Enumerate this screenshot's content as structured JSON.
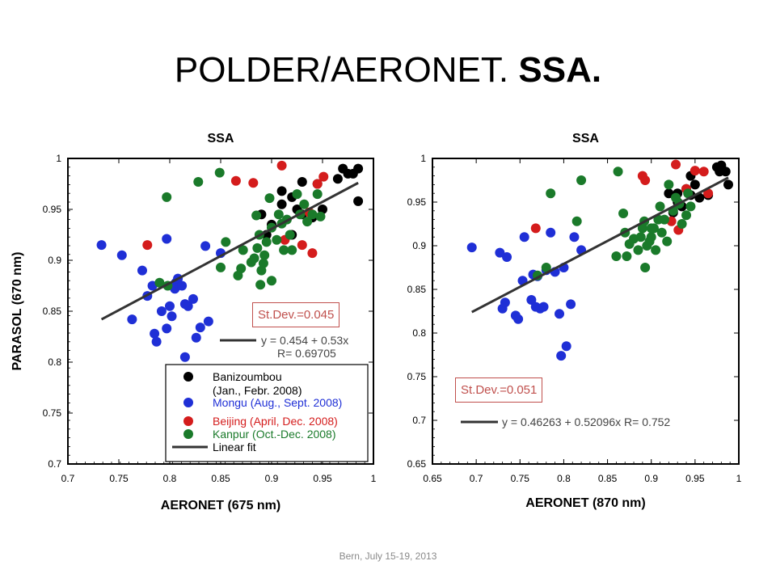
{
  "slide": {
    "title_plain": "POLDER/AERONET.",
    "title_bold": "SSA.",
    "footer": "Bern, July 15-19, 2013"
  },
  "colors": {
    "banizoumbou": "#000000",
    "mongu": "#1f2fd6",
    "beijing": "#d41c1c",
    "kanpur": "#1a7a2a",
    "fit": "#333333",
    "stdev_box": "#c0504d"
  },
  "chart_data": [
    {
      "type": "scatter",
      "title": "SSA",
      "xlabel": "AERONET (675 nm)",
      "ylabel": "PARASOL (670 nm)",
      "xlim": [
        0.7,
        1.0
      ],
      "ylim": [
        0.7,
        1.0
      ],
      "xticks": [
        0.7,
        0.75,
        0.8,
        0.85,
        0.9,
        0.95,
        1
      ],
      "xtick_labels": [
        "0.7",
        "0.75",
        "0.8",
        "0.85",
        "0.9",
        "0.95",
        "1"
      ],
      "yticks": [
        0.7,
        0.75,
        0.8,
        0.85,
        0.9,
        0.95,
        1
      ],
      "ytick_labels": [
        "0.7",
        "0.75",
        "0.8",
        "0.85",
        "0.9",
        "0.95",
        "1"
      ],
      "fit": {
        "x": [
          0.733,
          0.985
        ],
        "y": [
          0.842,
          0.976
        ],
        "label_line1": "y = 0.454 + 0.53x",
        "label_line2": "R= 0.69705"
      },
      "stdev": "St.Dev.=0.045",
      "legend": {
        "position": "bottom-right",
        "entries": [
          {
            "name": "Banizoumbou",
            "sub": "(Jan., Febr. 2008)",
            "color_key": "banizoumbou"
          },
          {
            "name": "Mongu (Aug., Sept. 2008)",
            "color_key": "mongu"
          },
          {
            "name": "Beijing (April, Dec. 2008)",
            "color_key": "beijing"
          },
          {
            "name": "Kanpur (Oct.-Dec. 2008)",
            "color_key": "kanpur"
          },
          {
            "name": "Linear fit",
            "line": true
          }
        ]
      },
      "series": [
        {
          "name": "Banizoumbou",
          "color_key": "banizoumbou",
          "points": [
            [
              0.965,
              0.98
            ],
            [
              0.97,
              0.99
            ],
            [
              0.975,
              0.985
            ],
            [
              0.98,
              0.985
            ],
            [
              0.985,
              0.99
            ],
            [
              0.985,
              0.958
            ],
            [
              0.93,
              0.977
            ],
            [
              0.945,
              0.975
            ],
            [
              0.91,
              0.968
            ],
            [
              0.92,
              0.962
            ],
            [
              0.925,
              0.95
            ],
            [
              0.93,
              0.945
            ],
            [
              0.91,
              0.955
            ],
            [
              0.89,
              0.945
            ],
            [
              0.9,
              0.935
            ],
            [
              0.895,
              0.925
            ],
            [
              0.92,
              0.925
            ],
            [
              0.95,
              0.95
            ],
            [
              0.94,
              0.942
            ]
          ]
        },
        {
          "name": "Mongu",
          "color_key": "mongu",
          "points": [
            [
              0.733,
              0.915
            ],
            [
              0.753,
              0.905
            ],
            [
              0.763,
              0.842
            ],
            [
              0.773,
              0.89
            ],
            [
              0.778,
              0.865
            ],
            [
              0.783,
              0.875
            ],
            [
              0.785,
              0.828
            ],
            [
              0.787,
              0.82
            ],
            [
              0.792,
              0.85
            ],
            [
              0.797,
              0.833
            ],
            [
              0.797,
              0.921
            ],
            [
              0.8,
              0.855
            ],
            [
              0.802,
              0.845
            ],
            [
              0.803,
              0.875
            ],
            [
              0.805,
              0.872
            ],
            [
              0.806,
              0.878
            ],
            [
              0.808,
              0.882
            ],
            [
              0.812,
              0.875
            ],
            [
              0.815,
              0.805
            ],
            [
              0.818,
              0.855
            ],
            [
              0.823,
              0.862
            ],
            [
              0.826,
              0.824
            ],
            [
              0.83,
              0.834
            ],
            [
              0.835,
              0.914
            ],
            [
              0.838,
              0.84
            ],
            [
              0.85,
              0.907
            ],
            [
              0.815,
              0.857
            ]
          ]
        },
        {
          "name": "Beijing",
          "color_key": "beijing",
          "points": [
            [
              0.778,
              0.915
            ],
            [
              0.865,
              0.978
            ],
            [
              0.882,
              0.976
            ],
            [
              0.91,
              0.993
            ],
            [
              0.913,
              0.92
            ],
            [
              0.93,
              0.915
            ],
            [
              0.937,
              0.947
            ],
            [
              0.94,
              0.907
            ],
            [
              0.945,
              0.975
            ],
            [
              0.951,
              0.982
            ]
          ]
        },
        {
          "name": "Kanpur",
          "color_key": "kanpur",
          "points": [
            [
              0.797,
              0.962
            ],
            [
              0.828,
              0.977
            ],
            [
              0.849,
              0.986
            ],
            [
              0.798,
              0.875
            ],
            [
              0.79,
              0.878
            ],
            [
              0.855,
              0.918
            ],
            [
              0.85,
              0.893
            ],
            [
              0.867,
              0.885
            ],
            [
              0.87,
              0.892
            ],
            [
              0.872,
              0.91
            ],
            [
              0.88,
              0.898
            ],
            [
              0.883,
              0.902
            ],
            [
              0.885,
              0.944
            ],
            [
              0.886,
              0.912
            ],
            [
              0.888,
              0.925
            ],
            [
              0.889,
              0.876
            ],
            [
              0.89,
              0.89
            ],
            [
              0.892,
              0.897
            ],
            [
              0.893,
              0.905
            ],
            [
              0.895,
              0.918
            ],
            [
              0.898,
              0.961
            ],
            [
              0.9,
              0.932
            ],
            [
              0.905,
              0.92
            ],
            [
              0.907,
              0.945
            ],
            [
              0.91,
              0.936
            ],
            [
              0.912,
              0.91
            ],
            [
              0.915,
              0.94
            ],
            [
              0.918,
              0.925
            ],
            [
              0.92,
              0.91
            ],
            [
              0.925,
              0.965
            ],
            [
              0.928,
              0.945
            ],
            [
              0.932,
              0.955
            ],
            [
              0.935,
              0.938
            ],
            [
              0.94,
              0.945
            ],
            [
              0.945,
              0.965
            ],
            [
              0.948,
              0.943
            ],
            [
              0.9,
              0.88
            ]
          ]
        }
      ]
    },
    {
      "type": "scatter",
      "title": "SSA",
      "xlabel": "AERONET (870 nm)",
      "ylabel": "",
      "xlim": [
        0.65,
        1.0
      ],
      "ylim": [
        0.65,
        1.0
      ],
      "xticks": [
        0.65,
        0.7,
        0.75,
        0.8,
        0.85,
        0.9,
        0.95,
        1
      ],
      "xtick_labels": [
        "0.65",
        "0.7",
        "0.75",
        "0.8",
        "0.85",
        "0.9",
        "0.95",
        "1"
      ],
      "yticks": [
        0.65,
        0.7,
        0.75,
        0.8,
        0.85,
        0.9,
        0.95,
        1
      ],
      "ytick_labels": [
        "0.65",
        "0.7",
        "0.75",
        "0.8",
        "0.85",
        "0.9",
        "0.95",
        "1"
      ],
      "fit": {
        "x": [
          0.695,
          0.988
        ],
        "y": [
          0.824,
          0.978
        ],
        "label_line1": "y = 0.46263 + 0.52096x   R= 0.752",
        "label_line2": ""
      },
      "stdev": "St.Dev.=0.051",
      "series": [
        {
          "name": "Banizoumbou",
          "color_key": "banizoumbou",
          "points": [
            [
              0.975,
              0.99
            ],
            [
              0.98,
              0.992
            ],
            [
              0.985,
              0.985
            ],
            [
              0.978,
              0.985
            ],
            [
              0.988,
              0.97
            ],
            [
              0.965,
              0.958
            ],
            [
              0.945,
              0.98
            ],
            [
              0.95,
              0.97
            ],
            [
              0.94,
              0.965
            ],
            [
              0.92,
              0.96
            ],
            [
              0.93,
              0.96
            ],
            [
              0.955,
              0.955
            ],
            [
              0.945,
              0.958
            ],
            [
              0.93,
              0.95
            ],
            [
              0.925,
              0.938
            ],
            [
              0.935,
              0.945
            ]
          ]
        },
        {
          "name": "Mongu",
          "color_key": "mongu",
          "points": [
            [
              0.695,
              0.898
            ],
            [
              0.727,
              0.892
            ],
            [
              0.73,
              0.828
            ],
            [
              0.733,
              0.835
            ],
            [
              0.735,
              0.887
            ],
            [
              0.745,
              0.82
            ],
            [
              0.748,
              0.816
            ],
            [
              0.753,
              0.86
            ],
            [
              0.755,
              0.91
            ],
            [
              0.763,
              0.838
            ],
            [
              0.765,
              0.867
            ],
            [
              0.768,
              0.83
            ],
            [
              0.77,
              0.865
            ],
            [
              0.773,
              0.828
            ],
            [
              0.777,
              0.83
            ],
            [
              0.78,
              0.872
            ],
            [
              0.785,
              0.915
            ],
            [
              0.79,
              0.87
            ],
            [
              0.795,
              0.822
            ],
            [
              0.797,
              0.774
            ],
            [
              0.803,
              0.785
            ],
            [
              0.808,
              0.833
            ],
            [
              0.812,
              0.91
            ],
            [
              0.82,
              0.895
            ],
            [
              0.8,
              0.875
            ]
          ]
        },
        {
          "name": "Beijing",
          "color_key": "beijing",
          "points": [
            [
              0.768,
              0.92
            ],
            [
              0.89,
              0.98
            ],
            [
              0.893,
              0.975
            ],
            [
              0.923,
              0.928
            ],
            [
              0.928,
              0.993
            ],
            [
              0.931,
              0.918
            ],
            [
              0.94,
              0.965
            ],
            [
              0.95,
              0.986
            ],
            [
              0.96,
              0.985
            ],
            [
              0.965,
              0.96
            ]
          ]
        },
        {
          "name": "Kanpur",
          "color_key": "kanpur",
          "points": [
            [
              0.785,
              0.96
            ],
            [
              0.82,
              0.975
            ],
            [
              0.862,
              0.985
            ],
            [
              0.77,
              0.866
            ],
            [
              0.78,
              0.875
            ],
            [
              0.815,
              0.928
            ],
            [
              0.86,
              0.888
            ],
            [
              0.868,
              0.937
            ],
            [
              0.87,
              0.915
            ],
            [
              0.872,
              0.888
            ],
            [
              0.875,
              0.902
            ],
            [
              0.88,
              0.908
            ],
            [
              0.885,
              0.895
            ],
            [
              0.888,
              0.91
            ],
            [
              0.89,
              0.92
            ],
            [
              0.892,
              0.928
            ],
            [
              0.893,
              0.875
            ],
            [
              0.895,
              0.9
            ],
            [
              0.898,
              0.905
            ],
            [
              0.9,
              0.91
            ],
            [
              0.903,
              0.92
            ],
            [
              0.905,
              0.895
            ],
            [
              0.908,
              0.93
            ],
            [
              0.91,
              0.945
            ],
            [
              0.912,
              0.915
            ],
            [
              0.915,
              0.93
            ],
            [
              0.918,
              0.905
            ],
            [
              0.92,
              0.97
            ],
            [
              0.925,
              0.94
            ],
            [
              0.928,
              0.955
            ],
            [
              0.932,
              0.948
            ],
            [
              0.935,
              0.925
            ],
            [
              0.94,
              0.935
            ],
            [
              0.942,
              0.96
            ],
            [
              0.945,
              0.945
            ],
            [
              0.9,
              0.92
            ]
          ]
        }
      ]
    }
  ]
}
